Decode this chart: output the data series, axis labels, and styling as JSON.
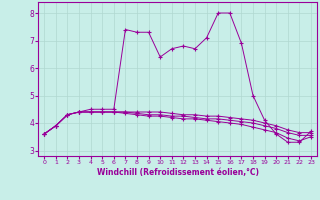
{
  "background_color": "#c8eee8",
  "line_color": "#990099",
  "grid_color": "#b0d8d0",
  "xlabel": "Windchill (Refroidissement éolien,°C)",
  "ylim": [
    2.8,
    8.4
  ],
  "xlim": [
    -0.5,
    23.5
  ],
  "yticks": [
    3,
    4,
    5,
    6,
    7,
    8
  ],
  "xticks": [
    0,
    1,
    2,
    3,
    4,
    5,
    6,
    7,
    8,
    9,
    10,
    11,
    12,
    13,
    14,
    15,
    16,
    17,
    18,
    19,
    20,
    21,
    22,
    23
  ],
  "series": [
    [
      3.6,
      3.9,
      4.3,
      4.4,
      4.5,
      4.5,
      4.5,
      7.4,
      7.3,
      7.3,
      6.4,
      6.7,
      6.8,
      6.7,
      7.1,
      8.0,
      8.0,
      6.9,
      5.0,
      4.1,
      3.6,
      3.3,
      3.3,
      3.7
    ],
    [
      3.6,
      3.9,
      4.3,
      4.4,
      4.4,
      4.4,
      4.4,
      4.4,
      4.4,
      4.4,
      4.4,
      4.35,
      4.3,
      4.3,
      4.25,
      4.25,
      4.2,
      4.15,
      4.1,
      4.0,
      3.9,
      3.75,
      3.65,
      3.65
    ],
    [
      3.6,
      3.9,
      4.3,
      4.4,
      4.4,
      4.4,
      4.4,
      4.4,
      4.35,
      4.3,
      4.3,
      4.25,
      4.25,
      4.2,
      4.15,
      4.15,
      4.1,
      4.05,
      4.0,
      3.9,
      3.8,
      3.65,
      3.55,
      3.55
    ],
    [
      3.6,
      3.9,
      4.3,
      4.4,
      4.4,
      4.4,
      4.4,
      4.35,
      4.3,
      4.25,
      4.25,
      4.2,
      4.15,
      4.15,
      4.1,
      4.05,
      4.0,
      3.95,
      3.85,
      3.75,
      3.65,
      3.45,
      3.35,
      3.5
    ]
  ]
}
